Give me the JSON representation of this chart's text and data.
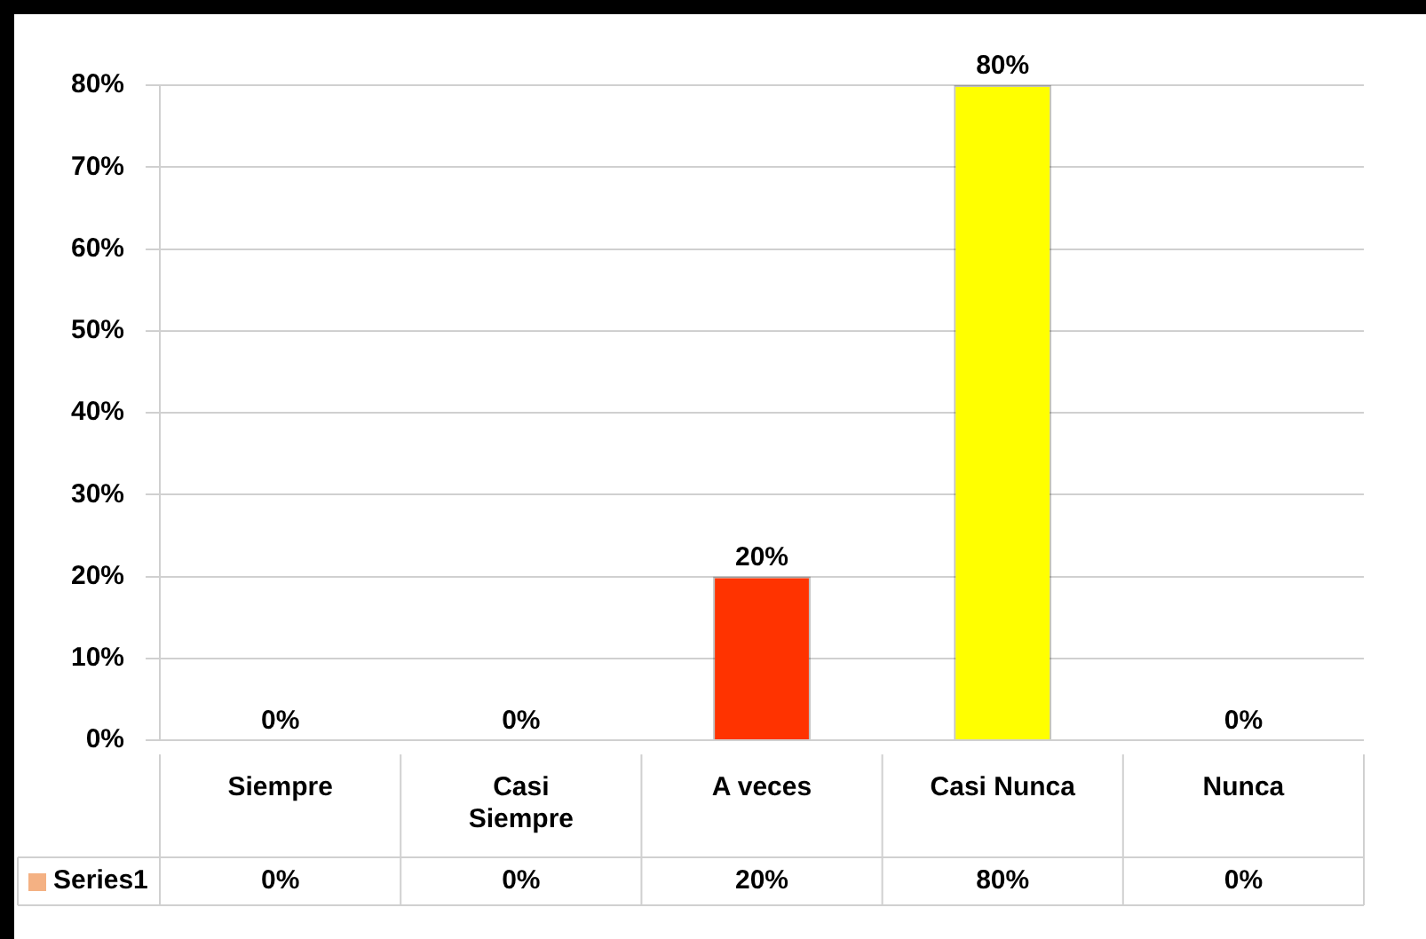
{
  "chart_data": {
    "type": "bar",
    "categories": [
      "Siempre",
      "Casi Siempre",
      "A veces",
      "Casi Nunca",
      "Nunca"
    ],
    "series": [
      {
        "name": "Series1",
        "color": "#f4b183",
        "colors": [
          "#c87800",
          "#2aa5c8",
          "#ff3300",
          "#ffff00",
          "#70c070"
        ],
        "values": [
          0,
          0,
          20,
          80,
          0
        ]
      }
    ],
    "ylim": [
      0,
      80
    ],
    "yticks": [
      {
        "value": 0,
        "label": "0%"
      },
      {
        "value": 10,
        "label": "10%"
      },
      {
        "value": 20,
        "label": "20%"
      },
      {
        "value": 30,
        "label": "30%"
      },
      {
        "value": 40,
        "label": "40%"
      },
      {
        "value": 50,
        "label": "50%"
      },
      {
        "value": 60,
        "label": "60%"
      },
      {
        "value": 70,
        "label": "70%"
      },
      {
        "value": 80,
        "label": "80%"
      }
    ],
    "value_labels": [
      "0%",
      "0%",
      "20%",
      "80%",
      "0%"
    ],
    "grid": "y",
    "legend": "bottom"
  }
}
